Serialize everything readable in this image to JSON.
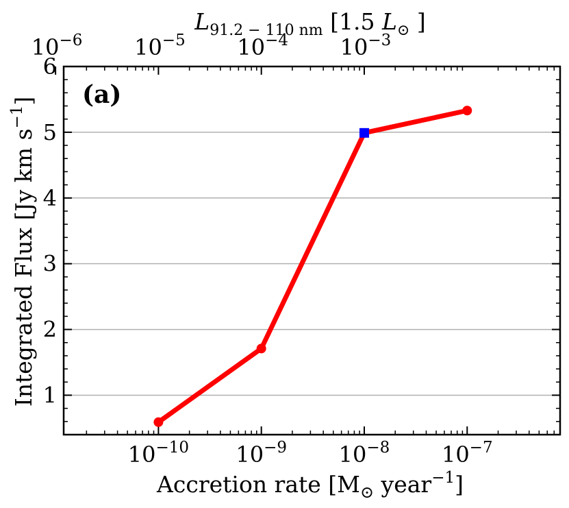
{
  "chart_data": {
    "type": "line",
    "panel_label": "(a)",
    "xlabel": "Accretion rate [M",
    "xlabel_sun": "⊙",
    "xlabel_tail": " year",
    "xlabel_exp": "−1",
    "xlabel_close": "]",
    "x_scale": "log",
    "xlim": [
      1.2e-11,
      8e-07
    ],
    "ylabel": "Integrated Flux [Jy km s",
    "ylabel_exp": "−1",
    "ylabel_close": "]",
    "ylim": [
      0.4,
      6
    ],
    "yticks": [
      1,
      2,
      3,
      4,
      5,
      6
    ],
    "ytick_labels": [
      "1",
      "2",
      "3",
      "4",
      "5",
      "6"
    ],
    "grid": "horizontal",
    "xticks": [
      1e-10,
      1e-09,
      1e-08,
      1e-07
    ],
    "xtick_labels": [
      {
        "base": "10",
        "exp": "−10"
      },
      {
        "base": "10",
        "exp": "−9"
      },
      {
        "base": "10",
        "exp": "−8"
      },
      {
        "base": "10",
        "exp": "−7"
      }
    ],
    "top_axis": {
      "label": "L",
      "label_sub": "91.2 − 110 nm",
      "label_bracket_open": " [1.5 ",
      "label_L2": "L",
      "label_sun": "⊙",
      "label_bracket_close": " ]",
      "ticks_at_bottom_x": [
        1e-11,
        1e-10,
        1e-09,
        1e-08
      ],
      "tick_labels": [
        {
          "base": "10",
          "exp": "−6"
        },
        {
          "base": "10",
          "exp": "−5"
        },
        {
          "base": "10",
          "exp": "−4"
        },
        {
          "base": "10",
          "exp": "−3"
        }
      ]
    },
    "series": [
      {
        "name": "Integrated flux",
        "color": "#ff0000",
        "points": [
          {
            "x": 1e-10,
            "y": 0.59
          },
          {
            "x": 1e-09,
            "y": 1.71
          },
          {
            "x": 1e-08,
            "y": 4.99
          },
          {
            "x": 1e-07,
            "y": 5.33
          }
        ]
      }
    ],
    "highlight": {
      "x": 1e-08,
      "y": 4.99,
      "color": "#0000ff",
      "marker": "square"
    },
    "colors": {
      "line": "#ff0000",
      "highlight": "#0000ff",
      "grid": "#b0b0b0",
      "axis": "#000000"
    }
  }
}
